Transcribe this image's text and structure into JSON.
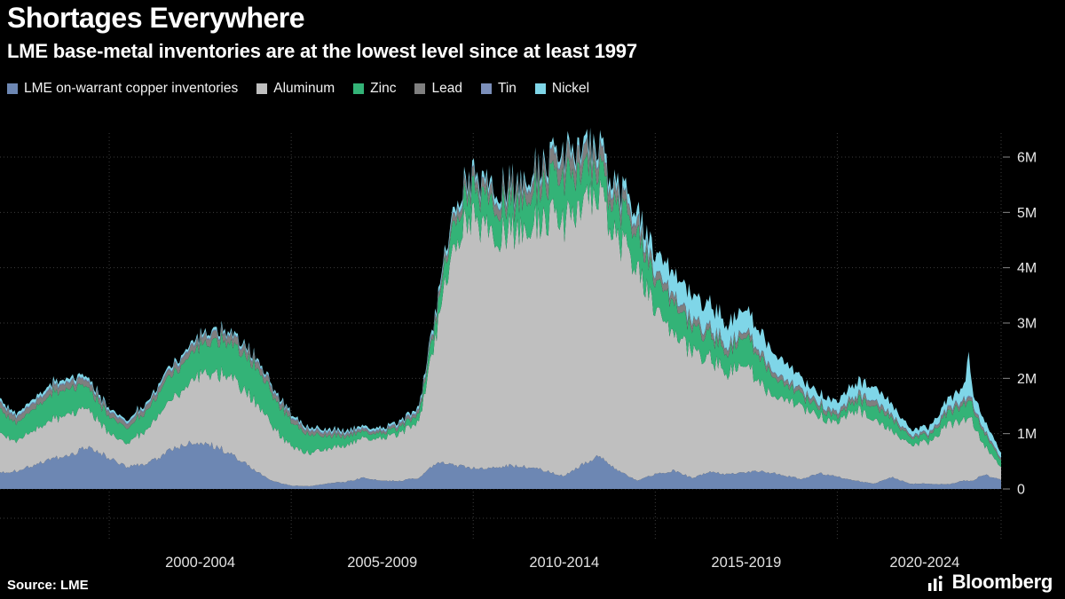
{
  "header": {
    "title": "Shortages Everywhere",
    "subtitle": "LME base-metal inventories are at the lowest level since at least 1997"
  },
  "source": "Source: LME",
  "branding": "Bloomberg",
  "colors": {
    "background": "#000000",
    "title_text": "#ffffff",
    "grid": "#3c3c3c",
    "axis_text": "#e8e8e8"
  },
  "chart_data": {
    "type": "area",
    "stacked": true,
    "grid": "dotted",
    "legend_position": "top",
    "ylim": [
      0,
      6.5
    ],
    "xlim": [
      1997,
      2024.5
    ],
    "y_ticks": [
      {
        "value": 0,
        "label": "0"
      },
      {
        "value": 1,
        "label": "1M"
      },
      {
        "value": 2,
        "label": "2M"
      },
      {
        "value": 3,
        "label": "3M"
      },
      {
        "value": 4,
        "label": "4M"
      },
      {
        "value": 5,
        "label": "5M"
      },
      {
        "value": 6,
        "label": "6M"
      }
    ],
    "x_gridlines": [
      2000,
      2005,
      2010,
      2015,
      2020
    ],
    "x_axis_labels": [
      {
        "center": 2002.5,
        "label": "2000-2004"
      },
      {
        "center": 2007.5,
        "label": "2005-2009"
      },
      {
        "center": 2012.5,
        "label": "2010-2014"
      },
      {
        "center": 2017.5,
        "label": "2015-2019"
      },
      {
        "center": 2022.4,
        "label": "2020-2024"
      }
    ],
    "x": [
      1997,
      1997.5,
      1998,
      1998.5,
      1999,
      1999.5,
      2000,
      2000.5,
      2001,
      2001.5,
      2002,
      2002.5,
      2003,
      2003.5,
      2004,
      2004.5,
      2005,
      2005.5,
      2006,
      2006.5,
      2007,
      2007.5,
      2008,
      2008.5,
      2009,
      2009.5,
      2010,
      2010.5,
      2011,
      2011.5,
      2012,
      2012.5,
      2013,
      2013.3,
      2013.5,
      2014,
      2014.5,
      2015,
      2015.5,
      2016,
      2016.5,
      2017,
      2017.5,
      2018,
      2018.5,
      2019,
      2019.5,
      2020,
      2020.5,
      2021,
      2021.5,
      2022,
      2022.5,
      2023,
      2023.5,
      2023.6,
      2023.7,
      2024,
      2024.5
    ],
    "series": [
      {
        "key": "copper",
        "name": "LME on-warrant copper inventories",
        "color": "#6d87b3",
        "values": [
          0.3,
          0.33,
          0.45,
          0.55,
          0.65,
          0.76,
          0.55,
          0.4,
          0.45,
          0.62,
          0.8,
          0.86,
          0.76,
          0.56,
          0.34,
          0.14,
          0.06,
          0.05,
          0.1,
          0.13,
          0.2,
          0.14,
          0.15,
          0.2,
          0.48,
          0.42,
          0.38,
          0.37,
          0.42,
          0.4,
          0.33,
          0.23,
          0.45,
          0.55,
          0.58,
          0.32,
          0.16,
          0.26,
          0.34,
          0.2,
          0.31,
          0.26,
          0.3,
          0.32,
          0.25,
          0.18,
          0.28,
          0.22,
          0.15,
          0.09,
          0.22,
          0.09,
          0.1,
          0.08,
          0.15,
          0.15,
          0.14,
          0.26,
          0.17
        ]
      },
      {
        "key": "aluminum",
        "name": "Aluminum",
        "color": "#bfbfbf",
        "values": [
          0.72,
          0.55,
          0.63,
          0.72,
          0.74,
          0.66,
          0.45,
          0.42,
          0.6,
          0.83,
          1.02,
          1.22,
          1.33,
          1.36,
          1.26,
          0.97,
          0.7,
          0.6,
          0.62,
          0.67,
          0.72,
          0.78,
          0.85,
          1.0,
          2.4,
          4.15,
          4.5,
          4.25,
          4.2,
          4.35,
          4.55,
          4.6,
          4.72,
          4.85,
          4.7,
          4.15,
          3.85,
          2.95,
          2.55,
          2.25,
          2.05,
          1.85,
          1.95,
          1.45,
          1.35,
          1.3,
          1.05,
          0.95,
          1.3,
          1.15,
          0.85,
          0.7,
          0.75,
          1.05,
          1.1,
          1.12,
          1.08,
          0.55,
          0.22
        ]
      },
      {
        "key": "zinc",
        "name": "Zinc",
        "color": "#33b377",
        "values": [
          0.42,
          0.32,
          0.42,
          0.48,
          0.46,
          0.38,
          0.3,
          0.28,
          0.33,
          0.42,
          0.46,
          0.54,
          0.6,
          0.63,
          0.64,
          0.57,
          0.44,
          0.33,
          0.23,
          0.17,
          0.11,
          0.09,
          0.11,
          0.14,
          0.3,
          0.44,
          0.52,
          0.55,
          0.52,
          0.57,
          0.68,
          0.78,
          0.62,
          0.5,
          0.45,
          0.58,
          0.64,
          0.52,
          0.55,
          0.43,
          0.42,
          0.37,
          0.52,
          0.44,
          0.28,
          0.22,
          0.16,
          0.1,
          0.18,
          0.25,
          0.22,
          0.13,
          0.12,
          0.2,
          0.28,
          0.3,
          0.28,
          0.24,
          0.12
        ]
      },
      {
        "key": "lead",
        "name": "Lead",
        "color": "#7f7f7f",
        "values": [
          0.11,
          0.1,
          0.11,
          0.11,
          0.11,
          0.1,
          0.09,
          0.08,
          0.09,
          0.1,
          0.11,
          0.12,
          0.13,
          0.13,
          0.12,
          0.1,
          0.08,
          0.07,
          0.06,
          0.05,
          0.04,
          0.04,
          0.05,
          0.06,
          0.09,
          0.13,
          0.16,
          0.18,
          0.2,
          0.22,
          0.26,
          0.3,
          0.29,
          0.27,
          0.25,
          0.21,
          0.18,
          0.15,
          0.13,
          0.12,
          0.11,
          0.11,
          0.1,
          0.09,
          0.08,
          0.08,
          0.07,
          0.07,
          0.08,
          0.1,
          0.06,
          0.04,
          0.04,
          0.06,
          0.07,
          0.07,
          0.06,
          0.05,
          0.03
        ]
      },
      {
        "key": "tin",
        "name": "Tin",
        "color": "#7b8fba",
        "values": [
          0.02,
          0.02,
          0.02,
          0.02,
          0.02,
          0.02,
          0.02,
          0.02,
          0.02,
          0.02,
          0.02,
          0.02,
          0.02,
          0.02,
          0.02,
          0.02,
          0.02,
          0.02,
          0.02,
          0.02,
          0.02,
          0.02,
          0.02,
          0.02,
          0.02,
          0.02,
          0.02,
          0.02,
          0.02,
          0.02,
          0.02,
          0.02,
          0.02,
          0.02,
          0.02,
          0.02,
          0.02,
          0.01,
          0.01,
          0.01,
          0.01,
          0.01,
          0.01,
          0.01,
          0.01,
          0.01,
          0.01,
          0.01,
          0.01,
          0.01,
          0.01,
          0.01,
          0.01,
          0.02,
          0.02,
          0.02,
          0.02,
          0.01,
          0.01
        ]
      },
      {
        "key": "nickel",
        "name": "Nickel",
        "color": "#7fd6e8",
        "values": [
          0.05,
          0.05,
          0.06,
          0.06,
          0.06,
          0.05,
          0.04,
          0.04,
          0.04,
          0.05,
          0.05,
          0.05,
          0.05,
          0.05,
          0.04,
          0.04,
          0.04,
          0.04,
          0.04,
          0.04,
          0.04,
          0.04,
          0.04,
          0.05,
          0.08,
          0.1,
          0.11,
          0.11,
          0.1,
          0.1,
          0.11,
          0.12,
          0.13,
          0.16,
          0.15,
          0.16,
          0.18,
          0.32,
          0.42,
          0.44,
          0.42,
          0.39,
          0.38,
          0.36,
          0.33,
          0.21,
          0.17,
          0.2,
          0.23,
          0.25,
          0.19,
          0.1,
          0.1,
          0.15,
          0.24,
          0.8,
          0.22,
          0.18,
          0.1
        ]
      }
    ]
  }
}
